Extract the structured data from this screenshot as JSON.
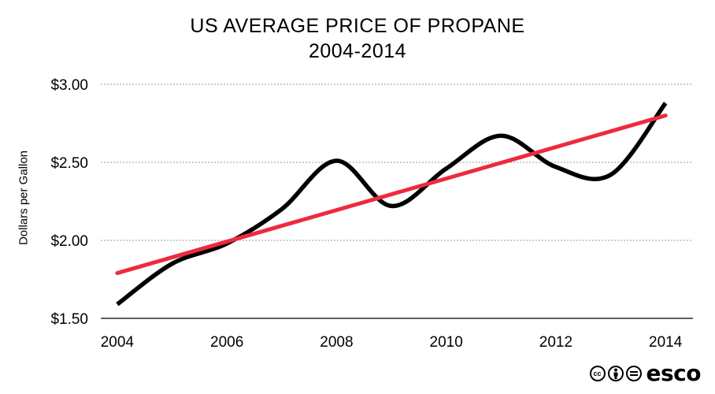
{
  "chart_data": {
    "type": "line",
    "title": "US AVERAGE PRICE OF PROPANE",
    "subtitle": "2004-2014",
    "xlabel": "",
    "ylabel": "Dollars per Gallon",
    "x": [
      2004,
      2005,
      2006,
      2007,
      2008,
      2009,
      2010,
      2011,
      2012,
      2013,
      2014
    ],
    "x_ticks": [
      "2004",
      "2006",
      "2008",
      "2010",
      "2012",
      "2014"
    ],
    "y_ticks": [
      "$1.50",
      "$2.00",
      "$2.50",
      "$3.00"
    ],
    "ylim": [
      1.5,
      3.0
    ],
    "xlim": [
      2003.7,
      2014.5
    ],
    "grid": "horizontal dashed",
    "series": [
      {
        "values": [
          1.59,
          1.85,
          1.98,
          2.2,
          2.51,
          2.22,
          2.46,
          2.67,
          2.47,
          2.42,
          2.88
        ],
        "color": "#000000"
      },
      {
        "values": [
          1.79,
          2.8
        ],
        "x": [
          2004,
          2014
        ],
        "color": "#ee2a3e",
        "style": "trend"
      }
    ]
  },
  "footer": {
    "license_icons": [
      "creative-commons-icon",
      "attribution-icon",
      "no-derivatives-icon"
    ],
    "cc_text": "cc",
    "brand": "esco"
  }
}
